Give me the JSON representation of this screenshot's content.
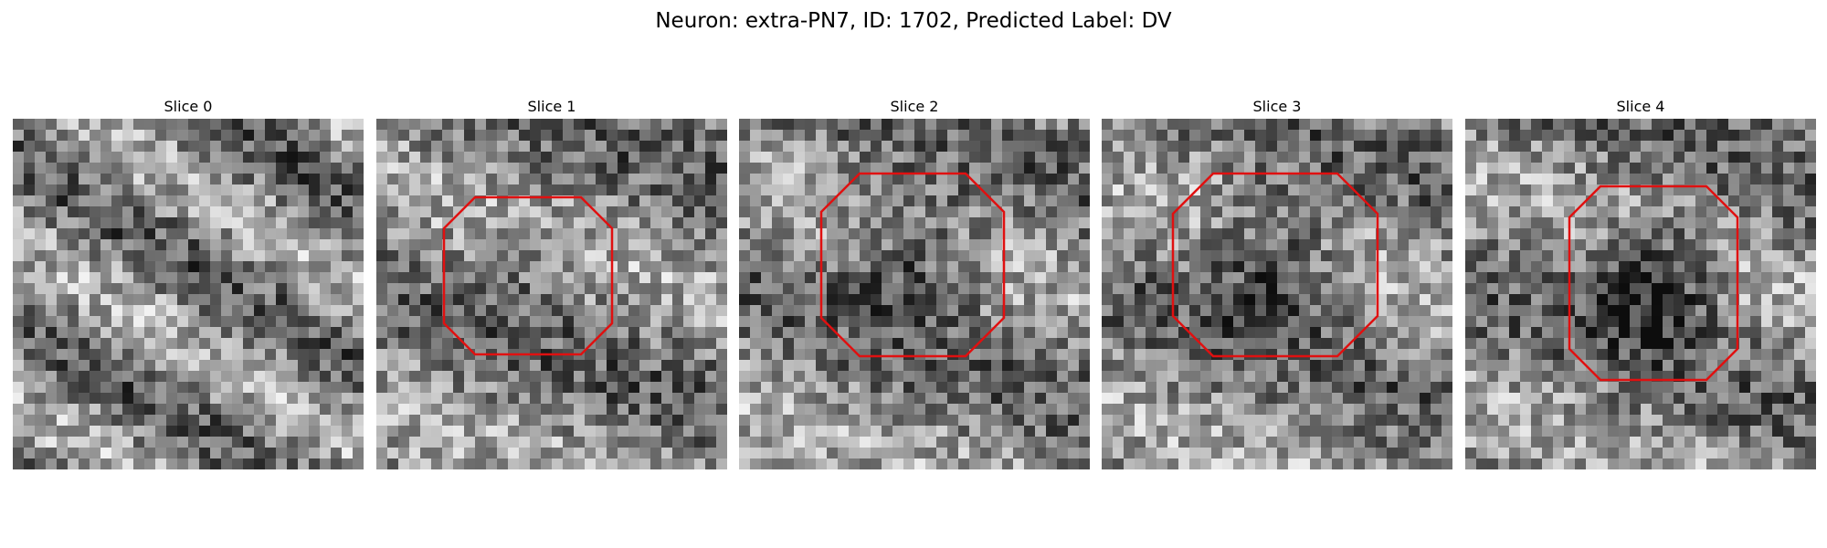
{
  "title": "Neuron: extra-PN7, ID: 1702, Predicted Label: DV",
  "contour_color": "#e01010",
  "slices": [
    {
      "label": "Slice 0",
      "seed": 11,
      "has_contour": false
    },
    {
      "label": "Slice 1",
      "seed": 23,
      "has_contour": true
    },
    {
      "label": "Slice 2",
      "seed": 37,
      "has_contour": true
    },
    {
      "label": "Slice 3",
      "seed": 51,
      "has_contour": true
    },
    {
      "label": "Slice 4",
      "seed": 67,
      "has_contour": true
    }
  ]
}
